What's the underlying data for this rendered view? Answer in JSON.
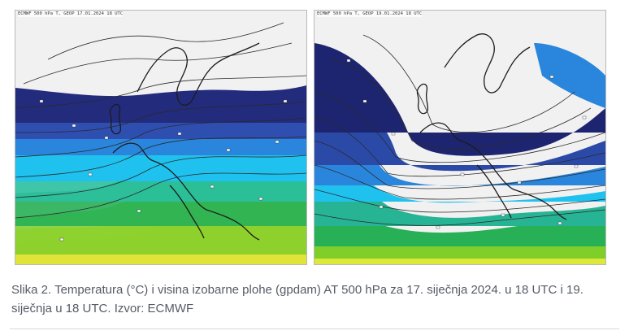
{
  "figure": {
    "maps": [
      {
        "header": "ECMWF 500 hPa T, GEOP 17.01.2024 18 UTC",
        "valid": "17. siječnja 2024. 18 UTC",
        "colors": {
          "background": "#f1f1f1",
          "very_cold": "#232b7c",
          "cold": "#2f4fb0",
          "cool": "#2a86dc",
          "mild_cool": "#1fc2ee",
          "mild": "#2bc0a0",
          "moderate": "#27b055",
          "warm": "#7fce2a",
          "warmer": "#dde93a",
          "hot": "#f1c93a",
          "land_border": "#1c1c1c",
          "isoline": "#2a2a2a"
        }
      },
      {
        "header": "ECMWF 500 hPa T, GEOP 19.01.2024 18 UTC",
        "valid": "19. siječnja 18 UTC",
        "colors": {
          "background": "#f1f1f1",
          "very_cold": "#1e2570",
          "cold": "#2b4aa8",
          "cool": "#2a86dc",
          "mild_cool": "#1fc2ee",
          "mild": "#27b494",
          "moderate": "#27b055",
          "warm": "#7fce2a",
          "warmer": "#dde93a",
          "hot": "#e88a2b",
          "land_border": "#1c1c1c",
          "isoline": "#2a2a2a"
        }
      }
    ],
    "caption": "Slika 2. Temperatura (°C) i visina izobarne plohe (gpdam) AT 500 hPa za 17. siječnja 2024. u 18 UTC i 19. siječnja u 18 UTC. Izvor: ECMWF"
  }
}
